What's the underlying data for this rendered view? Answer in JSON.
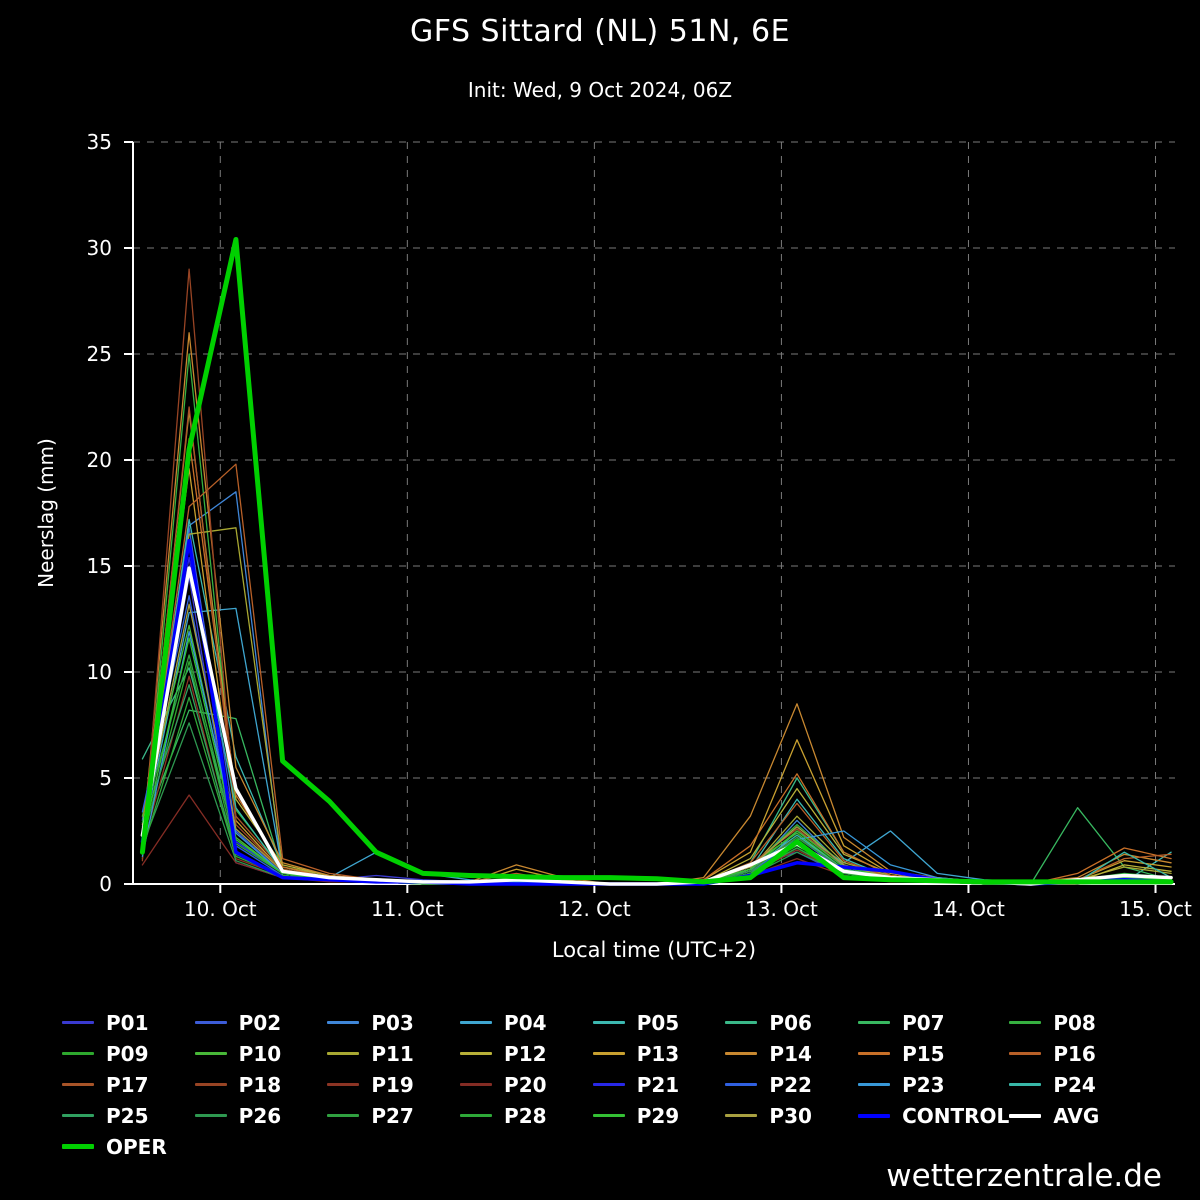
{
  "header": {
    "title": "GFS Sittard (NL) 51N, 6E",
    "subtitle": "Init: Wed, 9 Oct 2024, 06Z"
  },
  "footer": {
    "watermark": "wetterzentrale.de"
  },
  "chart_data": {
    "type": "line",
    "title": "GFS Sittard (NL) 51N, 6E",
    "subtitle": "Init: Wed, 9 Oct 2024, 06Z",
    "xlabel": "Local time (UTC+2)",
    "ylabel": "Neerslag (mm)",
    "grid": true,
    "grid_color": "#7a7a7a",
    "x_domain": [
      -11.2,
      122.5
    ],
    "y_domain": [
      0,
      35
    ],
    "y_ticks": [
      0,
      5,
      10,
      15,
      20,
      25,
      30,
      35
    ],
    "x_ticks": [
      {
        "label": "10. Oct",
        "hour": 0
      },
      {
        "label": "11. Oct",
        "hour": 24
      },
      {
        "label": "12. Oct",
        "hour": 48
      },
      {
        "label": "13. Oct",
        "hour": 72
      },
      {
        "label": "14. Oct",
        "hour": 96
      },
      {
        "label": "15. Oct",
        "hour": 120
      }
    ],
    "x_hours": [
      -10,
      -4,
      2,
      8,
      14,
      20,
      26,
      32,
      38,
      44,
      50,
      56,
      62,
      68,
      74,
      80,
      86,
      92,
      98,
      104,
      110,
      116,
      122
    ],
    "series": [
      {
        "name": "P01",
        "color": "#3a3ad0",
        "width": 1.3,
        "values": [
          2.1,
          14.5,
          1.0,
          0.3,
          0.2,
          0.4,
          0.2,
          0.1,
          0.1,
          0,
          0,
          0,
          0.1,
          0.8,
          1.5,
          0.4,
          0.2,
          0.3,
          0.1,
          0,
          0.1,
          0.2,
          0.1
        ]
      },
      {
        "name": "P02",
        "color": "#3c5cd8",
        "width": 1.3,
        "values": [
          3.0,
          16.8,
          2.5,
          0.5,
          0.3,
          0.2,
          0.1,
          0.1,
          0,
          0,
          0,
          0,
          0,
          0.5,
          2.2,
          0.6,
          0.3,
          0.2,
          0.1,
          0.1,
          0,
          0.1,
          0.2
        ]
      },
      {
        "name": "P03",
        "color": "#3f86d8",
        "width": 1.3,
        "values": [
          1.5,
          16.9,
          18.5,
          0.4,
          0.2,
          0.1,
          0.1,
          0,
          0,
          0,
          0,
          0,
          0.1,
          0.6,
          3.0,
          0.8,
          0.4,
          0.2,
          0.1,
          0,
          0.1,
          0.3,
          0.2
        ]
      },
      {
        "name": "P04",
        "color": "#3fa6d0",
        "width": 1.3,
        "values": [
          2.2,
          12.8,
          13.0,
          0.6,
          0.3,
          1.5,
          0.5,
          0.2,
          0.1,
          0,
          0,
          0,
          0,
          0.4,
          2.5,
          1.0,
          2.5,
          0.5,
          0.2,
          0.1,
          0,
          0.2,
          0.1
        ]
      },
      {
        "name": "P05",
        "color": "#3cb8b0",
        "width": 1.3,
        "values": [
          1.8,
          17.2,
          6.0,
          0.8,
          0.3,
          0.2,
          0.1,
          0.1,
          0,
          0,
          0,
          0,
          0.1,
          0.7,
          4.0,
          1.2,
          0.3,
          0.2,
          0.1,
          0.1,
          0,
          0.1,
          1.5
        ]
      },
      {
        "name": "P06",
        "color": "#3ab888",
        "width": 1.3,
        "values": [
          5.9,
          10.2,
          2.0,
          0.5,
          0.2,
          0.1,
          0.1,
          0,
          0,
          0,
          0,
          0,
          0.1,
          1.0,
          5.0,
          1.5,
          0.4,
          0.2,
          0.1,
          0,
          0.1,
          0.2,
          0.3
        ]
      },
      {
        "name": "P07",
        "color": "#38b860",
        "width": 1.3,
        "values": [
          2.5,
          8.2,
          7.8,
          0.6,
          0.3,
          0.2,
          0.1,
          0,
          0,
          0,
          0,
          0,
          0,
          0.5,
          2.0,
          0.5,
          0.2,
          0.1,
          0,
          0,
          3.6,
          0.8,
          0.2
        ]
      },
      {
        "name": "P08",
        "color": "#36b040",
        "width": 1.3,
        "values": [
          1.2,
          25.0,
          3.5,
          0.7,
          0.3,
          0.2,
          0.1,
          0.1,
          0,
          0,
          0,
          0,
          0.1,
          0.8,
          2.8,
          0.9,
          0.3,
          0.1,
          0.1,
          0,
          0.2,
          0.5,
          0.3
        ]
      },
      {
        "name": "P09",
        "color": "#2ea82e",
        "width": 1.3,
        "values": [
          2.0,
          10.5,
          1.5,
          0.4,
          0.2,
          0.1,
          0,
          0,
          0,
          0,
          0,
          0,
          0,
          0.6,
          1.8,
          0.6,
          0.2,
          0.1,
          0,
          0,
          0.1,
          0.2,
          0.1
        ]
      },
      {
        "name": "P10",
        "color": "#48b838",
        "width": 1.3,
        "values": [
          3.2,
          12.2,
          2.2,
          0.5,
          0.3,
          0.1,
          0.1,
          0,
          0,
          0,
          0,
          0,
          0.1,
          0.9,
          2.4,
          0.7,
          0.3,
          0.2,
          0.1,
          0,
          0.1,
          0.3,
          0.2
        ]
      },
      {
        "name": "P11",
        "color": "#a8a832",
        "width": 1.3,
        "values": [
          2.8,
          16.5,
          16.8,
          0.8,
          0.4,
          0.2,
          0.1,
          0.1,
          0,
          0,
          0,
          0,
          0,
          0.7,
          3.2,
          1.0,
          0.4,
          0.2,
          0.1,
          0.1,
          0.2,
          0.8,
          0.5
        ]
      },
      {
        "name": "P12",
        "color": "#b8b038",
        "width": 1.3,
        "values": [
          1.6,
          22.3,
          4.0,
          0.9,
          0.4,
          0.2,
          0.1,
          0,
          0.2,
          0,
          0,
          0,
          0.1,
          1.2,
          4.5,
          1.4,
          0.5,
          0.2,
          0.1,
          0,
          0.1,
          0.9,
          0.6
        ]
      },
      {
        "name": "P13",
        "color": "#c8a030",
        "width": 1.3,
        "values": [
          2.4,
          19.6,
          3.0,
          0.6,
          0.3,
          0.1,
          0.1,
          0,
          0.7,
          0.2,
          0,
          0,
          0.2,
          1.5,
          6.8,
          1.8,
          0.5,
          0.2,
          0.1,
          0.1,
          0.2,
          1.1,
          0.8
        ]
      },
      {
        "name": "P14",
        "color": "#c88830",
        "width": 1.3,
        "values": [
          1.9,
          26.0,
          5.5,
          1.0,
          0.4,
          0.2,
          0.1,
          0.1,
          0.9,
          0.3,
          0,
          0,
          0.3,
          3.2,
          8.5,
          2.2,
          0.6,
          0.3,
          0.1,
          0.1,
          0.3,
          1.4,
          1.0
        ]
      },
      {
        "name": "P15",
        "color": "#c87028",
        "width": 1.3,
        "values": [
          2.6,
          21.0,
          4.2,
          0.8,
          0.3,
          0.2,
          0.1,
          0,
          0.3,
          0.1,
          0,
          0,
          0.2,
          1.8,
          5.2,
          1.5,
          0.4,
          0.2,
          0.1,
          0,
          0.5,
          1.7,
          1.2
        ]
      },
      {
        "name": "P16",
        "color": "#b86028",
        "width": 1.3,
        "values": [
          2.2,
          17.8,
          19.8,
          1.2,
          0.5,
          0.2,
          0.1,
          0.1,
          0.5,
          0.1,
          0,
          0,
          0.1,
          1.0,
          3.8,
          1.1,
          0.3,
          0.2,
          0.1,
          0,
          0.2,
          1.2,
          1.4
        ]
      },
      {
        "name": "P17",
        "color": "#a85428",
        "width": 1.3,
        "values": [
          1.4,
          22.5,
          3.2,
          0.7,
          0.3,
          0.1,
          0.1,
          0,
          0,
          0,
          0,
          0,
          0.1,
          0.9,
          2.6,
          0.8,
          0.3,
          0.1,
          0.1,
          0,
          0.1,
          0.4,
          0.3
        ]
      },
      {
        "name": "P18",
        "color": "#984424",
        "width": 1.3,
        "values": [
          1.1,
          29.0,
          2.8,
          0.6,
          0.3,
          0.2,
          0.1,
          0,
          0,
          0,
          0,
          0,
          0.1,
          0.7,
          2.2,
          0.7,
          0.2,
          0.1,
          0,
          0,
          0.1,
          0.3,
          0.2
        ]
      },
      {
        "name": "P19",
        "color": "#8c3424",
        "width": 1.3,
        "values": [
          1.7,
          9.8,
          1.2,
          0.4,
          0.2,
          0.1,
          0,
          0,
          0,
          0,
          0,
          0,
          0,
          0.5,
          1.6,
          0.5,
          0.2,
          0.1,
          0,
          0,
          0,
          0.2,
          0.1
        ]
      },
      {
        "name": "P20",
        "color": "#842c24",
        "width": 1.3,
        "values": [
          0.9,
          4.2,
          1.0,
          0.3,
          0.1,
          0.1,
          0,
          0,
          0,
          0,
          0,
          0,
          0,
          0.4,
          1.2,
          0.4,
          0.1,
          0.1,
          0,
          0,
          0,
          0.1,
          0.1
        ]
      },
      {
        "name": "P21",
        "color": "#2828e8",
        "width": 1.3,
        "values": [
          2.3,
          15.4,
          2.0,
          0.5,
          0.2,
          0.1,
          0.1,
          0,
          0,
          0,
          0,
          0,
          0.1,
          0.6,
          2.0,
          0.6,
          0.2,
          0.1,
          0.1,
          0,
          0.1,
          0.2,
          0.1
        ]
      },
      {
        "name": "P22",
        "color": "#3060e0",
        "width": 1.3,
        "values": [
          3.4,
          13.6,
          1.8,
          0.4,
          0.2,
          0.1,
          0,
          0,
          0,
          0,
          0,
          0,
          0,
          0.5,
          1.7,
          0.5,
          0.2,
          0.1,
          0,
          0,
          0.1,
          0.1,
          0.1
        ]
      },
      {
        "name": "P23",
        "color": "#3898d8",
        "width": 1.3,
        "values": [
          1.3,
          11.9,
          2.4,
          0.5,
          0.2,
          0.1,
          0.1,
          0,
          0,
          0,
          0,
          0,
          0.1,
          0.6,
          2.1,
          2.5,
          0.9,
          0.3,
          0.1,
          0,
          0.1,
          0.2,
          0.1
        ]
      },
      {
        "name": "P24",
        "color": "#38b8a8",
        "width": 1.3,
        "values": [
          2.0,
          14.8,
          3.6,
          0.6,
          0.3,
          0.1,
          0.1,
          0,
          0,
          0,
          0,
          0,
          0.1,
          0.7,
          2.3,
          0.7,
          0.3,
          0.1,
          0.1,
          0,
          0.1,
          1.5,
          0.3
        ]
      },
      {
        "name": "P25",
        "color": "#30a060",
        "width": 1.3,
        "values": [
          2.7,
          9.4,
          1.4,
          0.4,
          0.2,
          0.1,
          0,
          0,
          0,
          0,
          0,
          0,
          0,
          0.5,
          1.9,
          0.6,
          0.2,
          0.1,
          0,
          0,
          0.2,
          0.3,
          0.2
        ]
      },
      {
        "name": "P26",
        "color": "#2e9850",
        "width": 1.3,
        "values": [
          1.8,
          7.6,
          1.1,
          0.3,
          0.2,
          0.1,
          0,
          0,
          0,
          0,
          0,
          0,
          0,
          0.4,
          1.5,
          0.5,
          0.2,
          0.1,
          0,
          0,
          0.1,
          0.2,
          0.1
        ]
      },
      {
        "name": "P27",
        "color": "#30a040",
        "width": 1.3,
        "values": [
          2.9,
          10.8,
          1.9,
          0.5,
          0.2,
          0.1,
          0.1,
          0,
          0,
          0,
          0,
          0,
          0.1,
          0.6,
          2.2,
          0.7,
          0.2,
          0.1,
          0,
          0,
          0.1,
          0.2,
          0.2
        ]
      },
      {
        "name": "P28",
        "color": "#2ea838",
        "width": 1.3,
        "values": [
          1.6,
          8.8,
          1.3,
          0.4,
          0.2,
          0.1,
          0,
          0,
          0,
          0,
          0,
          0,
          0,
          0.5,
          1.7,
          0.5,
          0.2,
          0.1,
          0,
          0,
          0.1,
          0.1,
          0.1
        ]
      },
      {
        "name": "P29",
        "color": "#34c034",
        "width": 1.3,
        "values": [
          2.1,
          11.6,
          2.1,
          0.5,
          0.2,
          0.1,
          0.1,
          0,
          0,
          0,
          0,
          0,
          0.1,
          0.7,
          2.5,
          0.8,
          0.3,
          0.1,
          0,
          0,
          0.2,
          0.3,
          0.2
        ]
      },
      {
        "name": "P30",
        "color": "#a8a040",
        "width": 1.3,
        "values": [
          2.5,
          13.2,
          2.6,
          0.6,
          0.3,
          0.1,
          0.1,
          0,
          0,
          0,
          0,
          0,
          0.1,
          0.8,
          2.7,
          0.9,
          0.3,
          0.2,
          0.1,
          0,
          0.1,
          0.4,
          0.3
        ]
      },
      {
        "name": "CONTROL",
        "color": "#0000ff",
        "width": 3.5,
        "values": [
          2.0,
          16.2,
          1.5,
          0.3,
          0.2,
          0.1,
          0.1,
          0,
          0,
          0,
          0,
          0,
          0,
          0.4,
          1.0,
          0.8,
          0.6,
          0.2,
          0.1,
          0,
          0.1,
          0.2,
          0.1
        ]
      },
      {
        "name": "AVG",
        "color": "#ffffff",
        "width": 3.5,
        "values": [
          2.3,
          14.9,
          4.5,
          0.6,
          0.3,
          0.2,
          0.1,
          0.1,
          0.2,
          0.1,
          0,
          0,
          0.1,
          0.9,
          1.9,
          0.6,
          0.3,
          0.2,
          0.1,
          0,
          0.2,
          0.4,
          0.3
        ]
      },
      {
        "name": "OPER",
        "color": "#00d000",
        "width": 5,
        "values": [
          1.5,
          20.5,
          30.4,
          5.8,
          3.9,
          1.5,
          0.5,
          0.4,
          0.35,
          0.3,
          0.3,
          0.25,
          0.1,
          0.3,
          2.0,
          0.3,
          0.2,
          0.15,
          0.1,
          0.1,
          0.1,
          0.1,
          0.1
        ]
      }
    ]
  }
}
